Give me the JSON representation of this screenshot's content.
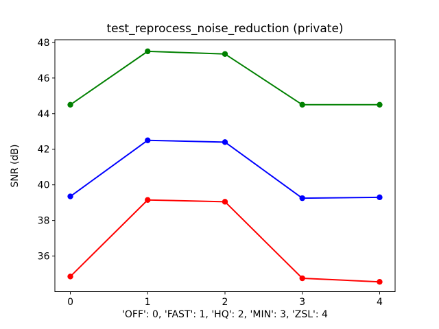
{
  "figure": {
    "background": "#ffffff",
    "text_color": "#000000"
  },
  "chart_data": {
    "type": "line",
    "title": "test_reprocess_noise_reduction (private)",
    "xlabel": "'OFF': 0, 'FAST': 1, 'HQ': 2, 'MIN': 3, 'ZSL': 4",
    "ylabel": "SNR (dB)",
    "x": [
      0,
      1,
      2,
      3,
      4
    ],
    "series": [
      {
        "name": "green-series",
        "color": "#008000",
        "values": [
          44.5,
          47.5,
          47.35,
          44.5,
          44.5
        ]
      },
      {
        "name": "blue-series",
        "color": "#0000ff",
        "values": [
          39.35,
          42.5,
          42.4,
          39.25,
          39.3
        ]
      },
      {
        "name": "red-series",
        "color": "#ff0000",
        "values": [
          34.85,
          39.15,
          39.05,
          34.75,
          34.55
        ]
      }
    ],
    "xticks": [
      0,
      1,
      2,
      3,
      4
    ],
    "yticks": [
      36,
      38,
      40,
      42,
      44,
      46,
      48
    ],
    "xlim": [
      -0.2,
      4.2
    ],
    "ylim": [
      34.0,
      48.15
    ],
    "grid": false,
    "legend": null,
    "marker": "o",
    "axis_color": "#000000"
  }
}
